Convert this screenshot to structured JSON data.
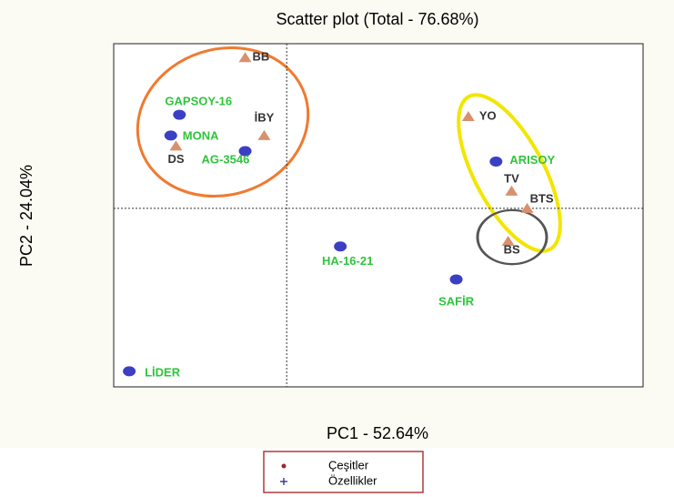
{
  "chart_data": {
    "type": "scatter",
    "title": "Scatter plot (Total - 76.68%)",
    "xlabel": "PC1 - 52.64%",
    "ylabel": "PC2 - 24.04%",
    "xlim": [
      -1,
      2.06
    ],
    "ylim": [
      -1.03,
      0.95
    ],
    "series": [
      {
        "name": "Çeşitler",
        "color": "#3b3fc4",
        "marker": "circle",
        "label_color": "#2fc43c",
        "legend_color": "#9c2a2a",
        "legend_marker": "dot",
        "labels": [
          "GAPSOY-16",
          "MONA",
          "AG-3546",
          "ARISOY",
          "HA-16-21",
          "SAFİR",
          "LİDER"
        ],
        "x": [
          -0.62,
          -0.67,
          -0.24,
          1.21,
          0.31,
          0.98,
          -0.91
        ],
        "values": [
          0.54,
          0.42,
          0.33,
          0.27,
          -0.22,
          -0.41,
          -0.94
        ]
      },
      {
        "name": "Özellikler",
        "color": "#d9906e",
        "marker": "triangle",
        "label_color": "#333333",
        "legend_color": "#2a2a8a",
        "legend_marker": "plus",
        "labels": [
          "BB",
          "İBY",
          "DS",
          "YO",
          "TV",
          "BTS",
          "BS"
        ],
        "x": [
          -0.24,
          -0.13,
          -0.64,
          1.05,
          1.3,
          1.39,
          1.28
        ],
        "values": [
          0.87,
          0.42,
          0.36,
          0.53,
          0.1,
          0.0,
          -0.19
        ]
      }
    ]
  }
}
